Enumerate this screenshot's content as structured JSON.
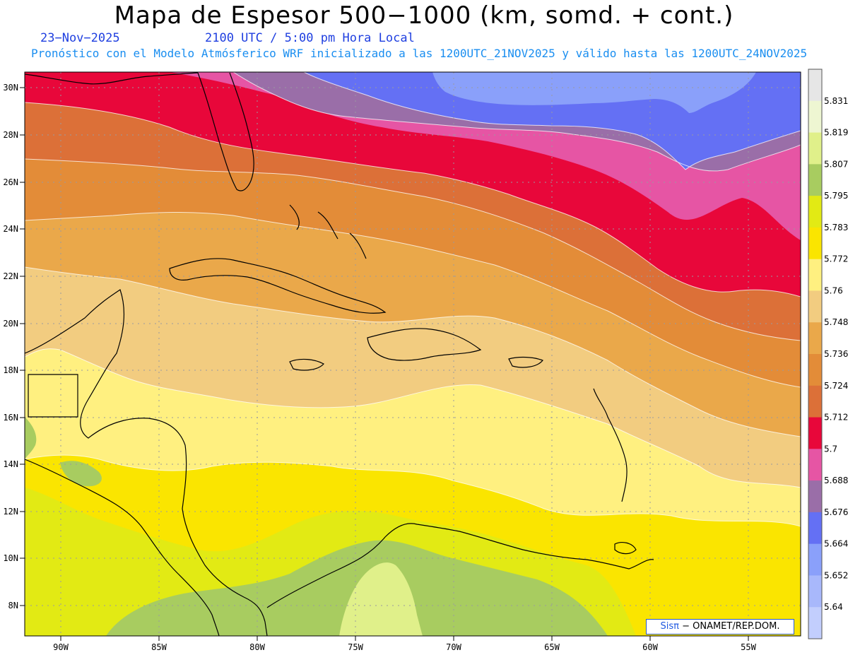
{
  "title": "Mapa de Espesor 500−1000 (km, somd. + cont.)",
  "date": "23−Nov−2025",
  "time": "2100 UTC / 5:00 pm Hora Local",
  "forecast_line": "Pronóstico con el Modelo Atmósferico WRF inicializado a las 1200UTC_21NOV2025 y válido hasta las  1200UTC_24NOV2025",
  "credit": {
    "brand": "Sisπ",
    "text": "− ONAMET/REP.DOM."
  },
  "lat_ticks": [
    "30N",
    "28N",
    "26N",
    "24N",
    "22N",
    "20N",
    "18N",
    "16N",
    "14N",
    "12N",
    "10N",
    "8N"
  ],
  "lon_ticks": [
    "90W",
    "85W",
    "80W",
    "75W",
    "70W",
    "65W",
    "60W",
    "55W"
  ],
  "colorbar": {
    "labels": [
      "5.831",
      "5.819",
      "5.807",
      "5.795",
      "5.783",
      "5.772",
      "5.76",
      "5.748",
      "5.736",
      "5.724",
      "5.712",
      "5.7",
      "5.688",
      "5.676",
      "5.664",
      "5.652",
      "5.64"
    ],
    "colors": [
      "#e6e6e6",
      "#eef6d2",
      "#e0f08a",
      "#a8cc60",
      "#e2ea14",
      "#fae500",
      "#fff080",
      "#f2cc80",
      "#eaa84a",
      "#e38c38",
      "#dc7038",
      "#e8073a",
      "#e655a4",
      "#9a6ea8",
      "#6470f4",
      "#8aa0fa",
      "#a8b8fb",
      "#c2cefd"
    ]
  },
  "map_colors": {
    "deep_blue": "#6470f4",
    "light_blue": "#8aa0fa",
    "purple": "#9a6ea8",
    "pink": "#e655a4",
    "red": "#e8073a",
    "dark_orange": "#dc7038",
    "orange": "#e38c38",
    "light_orange": "#eaa84a",
    "tan": "#f2cc80",
    "pale_yellow": "#fff080",
    "yellow": "#fae500",
    "lime": "#e2ea14",
    "green": "#a8cc60",
    "pale_green": "#e0f08a"
  }
}
